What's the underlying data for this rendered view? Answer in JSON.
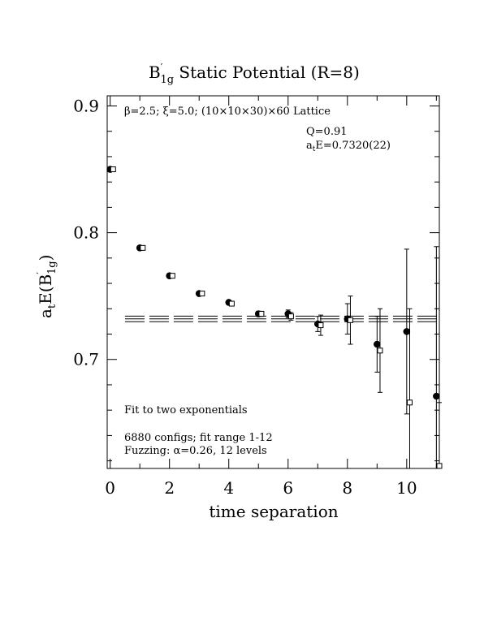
{
  "chart_data": {
    "type": "scatter",
    "title": {
      "main": "B",
      "sup": "′",
      "sub": "1g",
      "rest": " Static Potential (R=8)"
    },
    "xlabel": "time separation",
    "ylabel": {
      "a": "a",
      "t": "t",
      "E": "E(B",
      "prime": "′",
      "sub": "1g",
      "close": ")"
    },
    "xlim": [
      -0.1,
      11.1
    ],
    "ylim": [
      0.614,
      0.908
    ],
    "x_ticks": [
      0,
      2,
      4,
      6,
      8,
      10
    ],
    "x_tick_labels": [
      "0",
      "2",
      "4",
      "6",
      "8",
      "10"
    ],
    "y_ticks": [
      0.7,
      0.8,
      0.9
    ],
    "y_tick_labels": [
      "0.7",
      "0.8",
      "0.9"
    ],
    "annotations": {
      "lattice": "β=2.5; ξ=5.0; (10×10×30)×60 Lattice",
      "q": "Q=0.91",
      "energy_prefix": "a",
      "energy_sub": "t",
      "energy_rest": "E=0.7320(22)",
      "fit": "Fit to two exponentials",
      "configs": "6880 configs; fit range 1-12",
      "fuzzing": "Fuzzing: α=0.26, 12 levels"
    },
    "series": [
      {
        "marker": "filled-circle",
        "points": [
          {
            "x": 0,
            "y": 0.85,
            "err": 0.001
          },
          {
            "x": 1,
            "y": 0.788,
            "err": 0.001
          },
          {
            "x": 2,
            "y": 0.766,
            "err": 0.001
          },
          {
            "x": 3,
            "y": 0.752,
            "err": 0.001
          },
          {
            "x": 4,
            "y": 0.745,
            "err": 0.001
          },
          {
            "x": 5,
            "y": 0.736,
            "err": 0.002
          },
          {
            "x": 6,
            "y": 0.736,
            "err": 0.003
          },
          {
            "x": 7,
            "y": 0.728,
            "err": 0.006
          },
          {
            "x": 8,
            "y": 0.732,
            "err": 0.012
          },
          {
            "x": 9,
            "y": 0.712,
            "err": 0.022
          },
          {
            "x": 10,
            "y": 0.722,
            "err": 0.065
          },
          {
            "x": 11,
            "y": 0.671,
            "err": 0.118
          }
        ]
      },
      {
        "marker": "open-square",
        "points": [
          {
            "x": 0.1,
            "y": 0.85,
            "err": 0.001
          },
          {
            "x": 1.1,
            "y": 0.788,
            "err": 0.001
          },
          {
            "x": 2.1,
            "y": 0.766,
            "err": 0.001
          },
          {
            "x": 3.1,
            "y": 0.752,
            "err": 0.001
          },
          {
            "x": 4.1,
            "y": 0.744,
            "err": 0.001
          },
          {
            "x": 5.1,
            "y": 0.736,
            "err": 0.002
          },
          {
            "x": 6.1,
            "y": 0.734,
            "err": 0.003
          },
          {
            "x": 7.1,
            "y": 0.727,
            "err": 0.008
          },
          {
            "x": 8.1,
            "y": 0.731,
            "err": 0.019
          },
          {
            "x": 9.1,
            "y": 0.707,
            "err": 0.033
          },
          {
            "x": 10.1,
            "y": 0.666,
            "err": 0.074
          },
          {
            "x": 11.1,
            "y": 0.616,
            "err": 0.05
          }
        ]
      }
    ],
    "fit": {
      "x_range": [
        0.5,
        11.1
      ],
      "value": 0.732,
      "error": 0.0022
    }
  }
}
